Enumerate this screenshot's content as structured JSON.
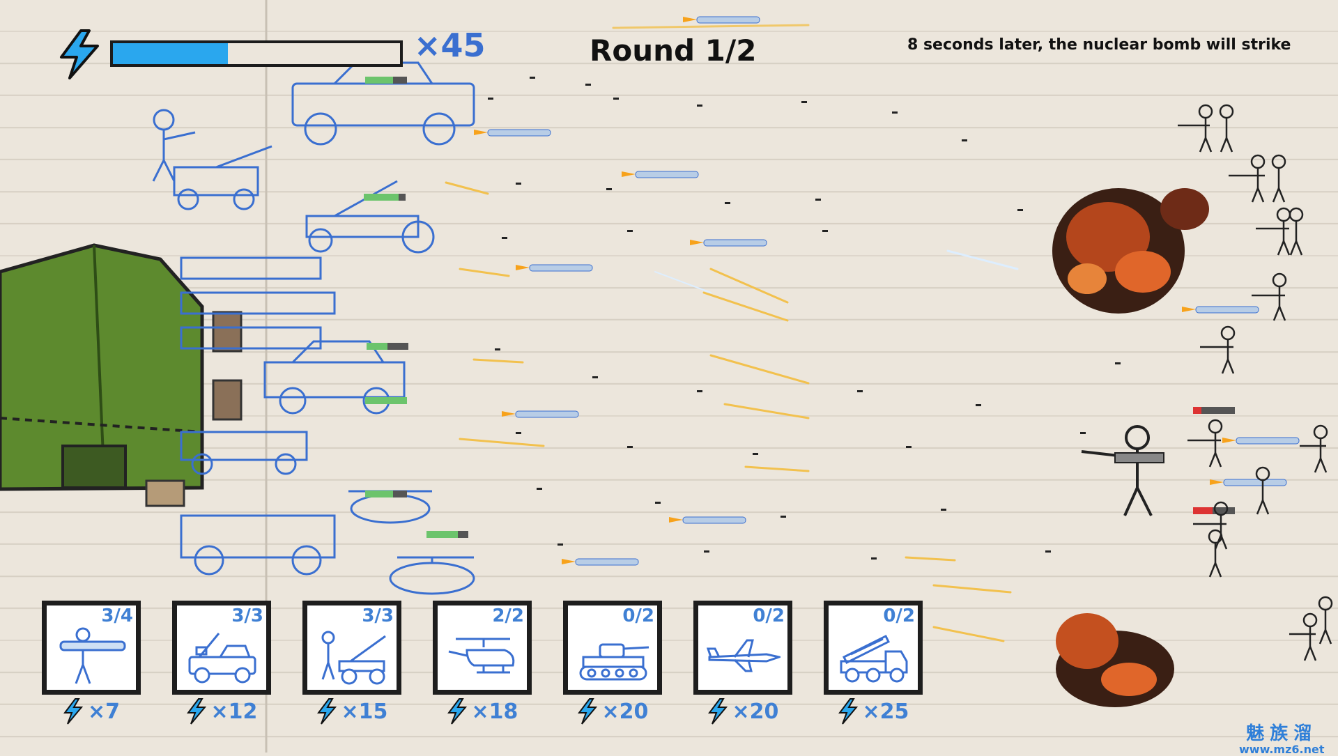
{
  "hud": {
    "energy_icon": "lightning-bolt-icon",
    "energy_fill": 0.4,
    "energy_count": "×45",
    "round": "Round 1/2",
    "warning": "8 seconds later, the nuclear bomb will strike"
  },
  "colors": {
    "player": "#3a6fd0",
    "energy": "#2aa7ee",
    "tent": "#5d8a2e"
  },
  "units": [
    {
      "name": "rocket-soldier",
      "icon": "bazooka-soldier-icon",
      "capacity": "3/4",
      "cost": "×7"
    },
    {
      "name": "machinegun-jeep",
      "icon": "gun-jeep-icon",
      "capacity": "3/3",
      "cost": "×12"
    },
    {
      "name": "artillery-cannon",
      "icon": "cannon-icon",
      "capacity": "3/3",
      "cost": "×15"
    },
    {
      "name": "helicopter",
      "icon": "helicopter-icon",
      "capacity": "2/2",
      "cost": "×18"
    },
    {
      "name": "tank",
      "icon": "tank-icon",
      "capacity": "0/2",
      "cost": "×20"
    },
    {
      "name": "fighter-jet",
      "icon": "jet-icon",
      "capacity": "0/2",
      "cost": "×20"
    },
    {
      "name": "rocket-launcher-truck",
      "icon": "missile-truck-icon",
      "capacity": "0/2",
      "cost": "×25"
    }
  ],
  "watermark": {
    "cn": "魅族溜",
    "url": "www.mz6.net"
  }
}
